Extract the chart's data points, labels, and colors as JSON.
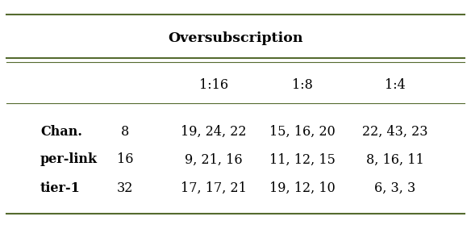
{
  "title": "Oversubscription",
  "sub_headers": [
    "1:16",
    "1:8",
    "1:4"
  ],
  "rows": [
    [
      "Chan.",
      "8",
      "19, 24, 22",
      "15, 16, 20",
      "22, 43, 23"
    ],
    [
      "per-link",
      "16",
      "9, 21, 16",
      "11, 12, 15",
      "8, 16, 11"
    ],
    [
      "tier-1",
      "32",
      "17, 17, 21",
      "19, 12, 10",
      "6, 3, 3"
    ]
  ],
  "line_color": "#556B2F",
  "background_color": "#ffffff",
  "text_color": "#000000",
  "fontsize": 11.5,
  "title_fontsize": 12.5
}
